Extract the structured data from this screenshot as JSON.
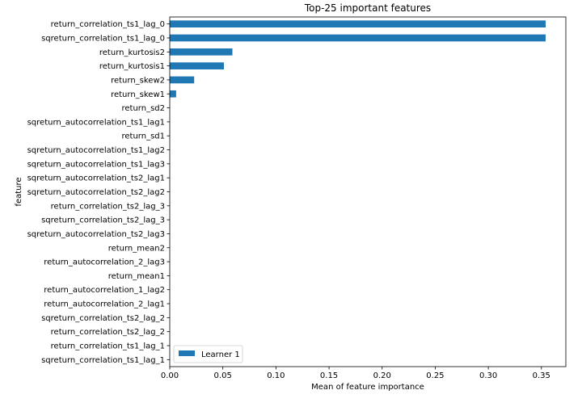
{
  "chart_data": {
    "type": "bar",
    "orientation": "horizontal",
    "title": "Top-25 important features",
    "xlabel": "Mean of feature importance",
    "ylabel": "feature",
    "xlim": [
      0,
      0.373
    ],
    "xticks": [
      0.0,
      0.05,
      0.1,
      0.15,
      0.2,
      0.25,
      0.3,
      0.35
    ],
    "xtick_labels": [
      "0.00",
      "0.05",
      "0.10",
      "0.15",
      "0.20",
      "0.25",
      "0.30",
      "0.35"
    ],
    "grid": false,
    "legend_position": "lower-left",
    "categories": [
      "return_correlation_ts1_lag_0",
      "sqreturn_correlation_ts1_lag_0",
      "return_kurtosis2",
      "return_kurtosis1",
      "return_skew2",
      "return_skew1",
      "return_sd2",
      "sqreturn_autocorrelation_ts1_lag1",
      "return_sd1",
      "sqreturn_autocorrelation_ts1_lag2",
      "sqreturn_autocorrelation_ts1_lag3",
      "sqreturn_autocorrelation_ts2_lag1",
      "sqreturn_autocorrelation_ts2_lag2",
      "return_correlation_ts2_lag_3",
      "sqreturn_correlation_ts2_lag_3",
      "sqreturn_autocorrelation_ts2_lag3",
      "return_mean2",
      "return_autocorrelation_2_lag3",
      "return_mean1",
      "return_autocorrelation_1_lag2",
      "return_autocorrelation_2_lag1",
      "sqreturn_correlation_ts2_lag_2",
      "return_correlation_ts2_lag_2",
      "return_correlation_ts1_lag_1",
      "sqreturn_correlation_ts1_lag_1"
    ],
    "series": [
      {
        "name": "Learner 1",
        "color": "#1f77b4",
        "values": [
          0.354,
          0.354,
          0.059,
          0.051,
          0.023,
          0.006,
          0,
          0,
          0,
          0,
          0,
          0,
          0,
          0,
          0,
          0,
          0,
          0,
          0,
          0,
          0,
          0,
          0,
          0,
          0
        ]
      }
    ]
  }
}
